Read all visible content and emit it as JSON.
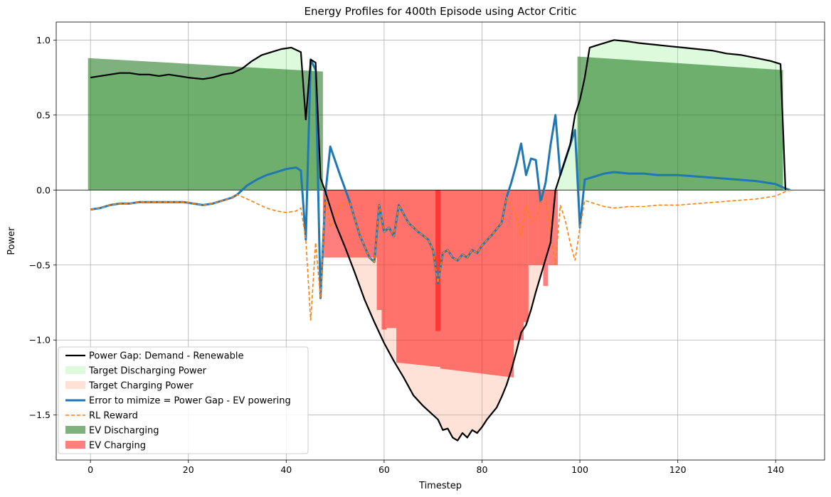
{
  "chart_data": {
    "type": "line",
    "title": "Energy Profiles for 400th Episode using Actor Critic",
    "xlabel": "Timestep",
    "ylabel": "Power",
    "xlim": [
      -7,
      150
    ],
    "ylim": [
      -1.8,
      1.12
    ],
    "xticks": [
      0,
      20,
      40,
      60,
      80,
      100,
      120,
      140
    ],
    "yticks": [
      -1.5,
      -1.0,
      -0.5,
      0.0,
      0.5,
      1.0
    ],
    "ytick_labels": [
      "−1.5",
      "−1.0",
      "−0.5",
      "0.0",
      "0.5",
      "1.0"
    ],
    "grid": true,
    "legend_position": "lower-left",
    "colors": {
      "power_gap": "#000000",
      "target_discharging": "#90ee90",
      "target_charging": "#ffa07a",
      "error": "#1f77b4",
      "rl_reward": "#ff7f0e",
      "ev_discharging": "#006400",
      "ev_charging": "#ff0000"
    },
    "legend": [
      {
        "key": "power_gap",
        "label": "Power Gap: Demand - Renewable"
      },
      {
        "key": "target_discharging",
        "label": "Target Discharging Power"
      },
      {
        "key": "target_charging",
        "label": "Target Charging Power"
      },
      {
        "key": "error",
        "label": "Error to mimize = Power Gap - EV powering"
      },
      {
        "key": "rl_reward",
        "label": "RL Reward"
      },
      {
        "key": "ev_discharging",
        "label": "EV Discharging"
      },
      {
        "key": "ev_charging",
        "label": "EV Charging"
      }
    ],
    "power_gap": [
      [
        0,
        0.75
      ],
      [
        2,
        0.76
      ],
      [
        4,
        0.77
      ],
      [
        6,
        0.78
      ],
      [
        8,
        0.78
      ],
      [
        10,
        0.77
      ],
      [
        12,
        0.77
      ],
      [
        14,
        0.76
      ],
      [
        16,
        0.77
      ],
      [
        18,
        0.76
      ],
      [
        20,
        0.75
      ],
      [
        23,
        0.74
      ],
      [
        25,
        0.75
      ],
      [
        27,
        0.77
      ],
      [
        29,
        0.78
      ],
      [
        31,
        0.81
      ],
      [
        33,
        0.86
      ],
      [
        35,
        0.9
      ],
      [
        37,
        0.92
      ],
      [
        39,
        0.94
      ],
      [
        41,
        0.95
      ],
      [
        43,
        0.92
      ],
      [
        44,
        0.47
      ],
      [
        45,
        0.87
      ],
      [
        46,
        0.85
      ],
      [
        47,
        0.08
      ],
      [
        48,
        -0.01
      ],
      [
        50,
        -0.22
      ],
      [
        52,
        -0.38
      ],
      [
        54,
        -0.55
      ],
      [
        56,
        -0.73
      ],
      [
        58,
        -0.88
      ],
      [
        60,
        -1.02
      ],
      [
        62,
        -1.14
      ],
      [
        64,
        -1.25
      ],
      [
        66,
        -1.37
      ],
      [
        68,
        -1.44
      ],
      [
        70,
        -1.5
      ],
      [
        71,
        -1.53
      ],
      [
        72,
        -1.6
      ],
      [
        73,
        -1.59
      ],
      [
        74,
        -1.65
      ],
      [
        75,
        -1.67
      ],
      [
        76,
        -1.62
      ],
      [
        77,
        -1.65
      ],
      [
        78,
        -1.6
      ],
      [
        79,
        -1.62
      ],
      [
        80,
        -1.58
      ],
      [
        81,
        -1.53
      ],
      [
        82,
        -1.49
      ],
      [
        83,
        -1.45
      ],
      [
        84,
        -1.38
      ],
      [
        85,
        -1.3
      ],
      [
        86,
        -1.2
      ],
      [
        87,
        -1.08
      ],
      [
        88,
        -0.95
      ],
      [
        89,
        -0.9
      ],
      [
        90,
        -0.8
      ],
      [
        91,
        -0.68
      ],
      [
        92,
        -0.57
      ],
      [
        93,
        -0.46
      ],
      [
        94,
        -0.35
      ],
      [
        95,
        0.0
      ],
      [
        96,
        0.1
      ],
      [
        97,
        0.2
      ],
      [
        98,
        0.3
      ],
      [
        99,
        0.5
      ],
      [
        100,
        0.6
      ],
      [
        101,
        0.75
      ],
      [
        102,
        0.95
      ],
      [
        104,
        0.97
      ],
      [
        106,
        0.99
      ],
      [
        107,
        1.0
      ],
      [
        110,
        0.99
      ],
      [
        112,
        0.98
      ],
      [
        115,
        0.97
      ],
      [
        118,
        0.96
      ],
      [
        121,
        0.95
      ],
      [
        124,
        0.94
      ],
      [
        127,
        0.93
      ],
      [
        130,
        0.91
      ],
      [
        133,
        0.9
      ],
      [
        136,
        0.88
      ],
      [
        139,
        0.86
      ],
      [
        141,
        0.84
      ],
      [
        142,
        0.0
      ]
    ],
    "error_line": [
      [
        0,
        -0.13
      ],
      [
        2,
        -0.12
      ],
      [
        4,
        -0.1
      ],
      [
        6,
        -0.09
      ],
      [
        8,
        -0.09
      ],
      [
        10,
        -0.08
      ],
      [
        13,
        -0.08
      ],
      [
        16,
        -0.08
      ],
      [
        19,
        -0.08
      ],
      [
        21,
        -0.09
      ],
      [
        23,
        -0.1
      ],
      [
        25,
        -0.09
      ],
      [
        27,
        -0.07
      ],
      [
        29,
        -0.05
      ],
      [
        30,
        -0.03
      ],
      [
        32,
        0.03
      ],
      [
        34,
        0.07
      ],
      [
        36,
        0.1
      ],
      [
        38,
        0.12
      ],
      [
        40,
        0.14
      ],
      [
        42,
        0.15
      ],
      [
        43,
        0.13
      ],
      [
        44,
        -0.33
      ],
      [
        45,
        0.87
      ],
      [
        46,
        0.8
      ],
      [
        47,
        -0.72
      ],
      [
        48,
        -0.03
      ],
      [
        49,
        0.29
      ],
      [
        51,
        0.1
      ],
      [
        53,
        -0.08
      ],
      [
        55,
        -0.3
      ],
      [
        57,
        -0.45
      ],
      [
        58,
        -0.48
      ],
      [
        59,
        -0.1
      ],
      [
        60,
        -0.28
      ],
      [
        61,
        -0.25
      ],
      [
        62,
        -0.31
      ],
      [
        63,
        -0.1
      ],
      [
        65,
        -0.22
      ],
      [
        67,
        -0.28
      ],
      [
        69,
        -0.33
      ],
      [
        70,
        -0.4
      ],
      [
        71,
        -0.62
      ],
      [
        72,
        -0.42
      ],
      [
        73,
        -0.4
      ],
      [
        74,
        -0.45
      ],
      [
        75,
        -0.47
      ],
      [
        76,
        -0.43
      ],
      [
        77,
        -0.45
      ],
      [
        78,
        -0.4
      ],
      [
        79,
        -0.42
      ],
      [
        80,
        -0.37
      ],
      [
        82,
        -0.3
      ],
      [
        84,
        -0.22
      ],
      [
        85,
        -0.05
      ],
      [
        86,
        0.05
      ],
      [
        87,
        0.17
      ],
      [
        88,
        0.31
      ],
      [
        89,
        0.1
      ],
      [
        90,
        0.21
      ],
      [
        91,
        0.2
      ],
      [
        92,
        -0.08
      ],
      [
        93,
        0.05
      ],
      [
        94,
        0.3
      ],
      [
        95,
        0.5
      ],
      [
        96,
        0.1
      ],
      [
        97,
        0.2
      ],
      [
        98,
        0.3
      ],
      [
        99,
        0.4
      ],
      [
        100,
        -0.25
      ],
      [
        101,
        0.07
      ],
      [
        103,
        0.09
      ],
      [
        105,
        0.11
      ],
      [
        107,
        0.12
      ],
      [
        110,
        0.11
      ],
      [
        113,
        0.11
      ],
      [
        116,
        0.1
      ],
      [
        120,
        0.1
      ],
      [
        124,
        0.09
      ],
      [
        128,
        0.08
      ],
      [
        132,
        0.07
      ],
      [
        136,
        0.06
      ],
      [
        140,
        0.04
      ],
      [
        142,
        0.01
      ],
      [
        143,
        0.0
      ]
    ],
    "rl_reward": [
      [
        0,
        -0.13
      ],
      [
        2,
        -0.12
      ],
      [
        4,
        -0.1
      ],
      [
        6,
        -0.09
      ],
      [
        8,
        -0.09
      ],
      [
        10,
        -0.08
      ],
      [
        13,
        -0.08
      ],
      [
        16,
        -0.08
      ],
      [
        19,
        -0.08
      ],
      [
        21,
        -0.09
      ],
      [
        23,
        -0.1
      ],
      [
        25,
        -0.09
      ],
      [
        27,
        -0.07
      ],
      [
        29,
        -0.05
      ],
      [
        30,
        -0.03
      ],
      [
        32,
        -0.06
      ],
      [
        34,
        -0.09
      ],
      [
        36,
        -0.12
      ],
      [
        38,
        -0.14
      ],
      [
        40,
        -0.15
      ],
      [
        42,
        -0.14
      ],
      [
        43,
        -0.12
      ],
      [
        44,
        -0.33
      ],
      [
        45,
        -0.87
      ],
      [
        46,
        -0.35
      ],
      [
        47,
        -0.72
      ],
      [
        48,
        -0.03
      ],
      [
        49,
        -0.25
      ],
      [
        51,
        -0.1
      ],
      [
        53,
        -0.08
      ],
      [
        55,
        -0.3
      ],
      [
        57,
        -0.45
      ],
      [
        58,
        -0.48
      ],
      [
        59,
        -0.1
      ],
      [
        60,
        -0.28
      ],
      [
        61,
        -0.25
      ],
      [
        62,
        -0.31
      ],
      [
        63,
        -0.1
      ],
      [
        65,
        -0.22
      ],
      [
        67,
        -0.28
      ],
      [
        69,
        -0.33
      ],
      [
        70,
        -0.4
      ],
      [
        71,
        -0.62
      ],
      [
        72,
        -0.42
      ],
      [
        73,
        -0.4
      ],
      [
        74,
        -0.45
      ],
      [
        75,
        -0.47
      ],
      [
        76,
        -0.43
      ],
      [
        77,
        -0.45
      ],
      [
        78,
        -0.4
      ],
      [
        79,
        -0.42
      ],
      [
        80,
        -0.37
      ],
      [
        82,
        -0.3
      ],
      [
        84,
        -0.22
      ],
      [
        85,
        -0.05
      ],
      [
        86,
        -0.1
      ],
      [
        87,
        -0.17
      ],
      [
        88,
        -0.31
      ],
      [
        89,
        -0.1
      ],
      [
        90,
        -0.21
      ],
      [
        91,
        -0.2
      ],
      [
        92,
        -0.08
      ],
      [
        93,
        -0.05
      ],
      [
        94,
        -0.3
      ],
      [
        95,
        -0.5
      ],
      [
        96,
        -0.1
      ],
      [
        97,
        -0.2
      ],
      [
        98,
        -0.35
      ],
      [
        99,
        -0.47
      ],
      [
        100,
        -0.25
      ],
      [
        101,
        -0.07
      ],
      [
        103,
        -0.09
      ],
      [
        105,
        -0.11
      ],
      [
        107,
        -0.12
      ],
      [
        110,
        -0.11
      ],
      [
        113,
        -0.11
      ],
      [
        116,
        -0.1
      ],
      [
        120,
        -0.1
      ],
      [
        124,
        -0.09
      ],
      [
        128,
        -0.08
      ],
      [
        132,
        -0.07
      ],
      [
        136,
        -0.06
      ],
      [
        140,
        -0.04
      ],
      [
        142,
        -0.01
      ],
      [
        143,
        0.0
      ]
    ],
    "ev_discharging": [
      {
        "x0": -0.5,
        "x1": 47.5,
        "y0": 0.88,
        "y1": 0.79
      },
      {
        "x0": 99.5,
        "x1": 141.5,
        "y0": 0.89,
        "y1": 0.8
      }
    ],
    "ev_charging": [
      {
        "x0": 47.5,
        "x1": 58.5,
        "value": -0.45
      },
      {
        "x0": 58.5,
        "x1": 59.5,
        "value": -0.8
      },
      {
        "x0": 59.5,
        "x1": 60.5,
        "value": -0.93
      },
      {
        "x0": 60.5,
        "x1": 62.5,
        "value": -0.92
      },
      {
        "x0": 62.5,
        "x1": 71.5,
        "y0": -1.15,
        "y1": -1.18
      },
      {
        "x0": 70.5,
        "x1": 71.5,
        "value": -0.94
      },
      {
        "x0": 71.5,
        "x1": 86.5,
        "y0": -1.19,
        "y1": -1.25
      },
      {
        "x0": 86.5,
        "x1": 88.5,
        "value": -1.0
      },
      {
        "x0": 88.5,
        "x1": 89.5,
        "value": -0.88
      },
      {
        "x0": 89.5,
        "x1": 91.5,
        "value": -0.5
      },
      {
        "x0": 91.5,
        "x1": 92.5,
        "value": -0.5
      },
      {
        "x0": 92.5,
        "x1": 93.5,
        "value": -0.64
      },
      {
        "x0": 93.5,
        "x1": 95.5,
        "value": -0.5
      }
    ]
  }
}
